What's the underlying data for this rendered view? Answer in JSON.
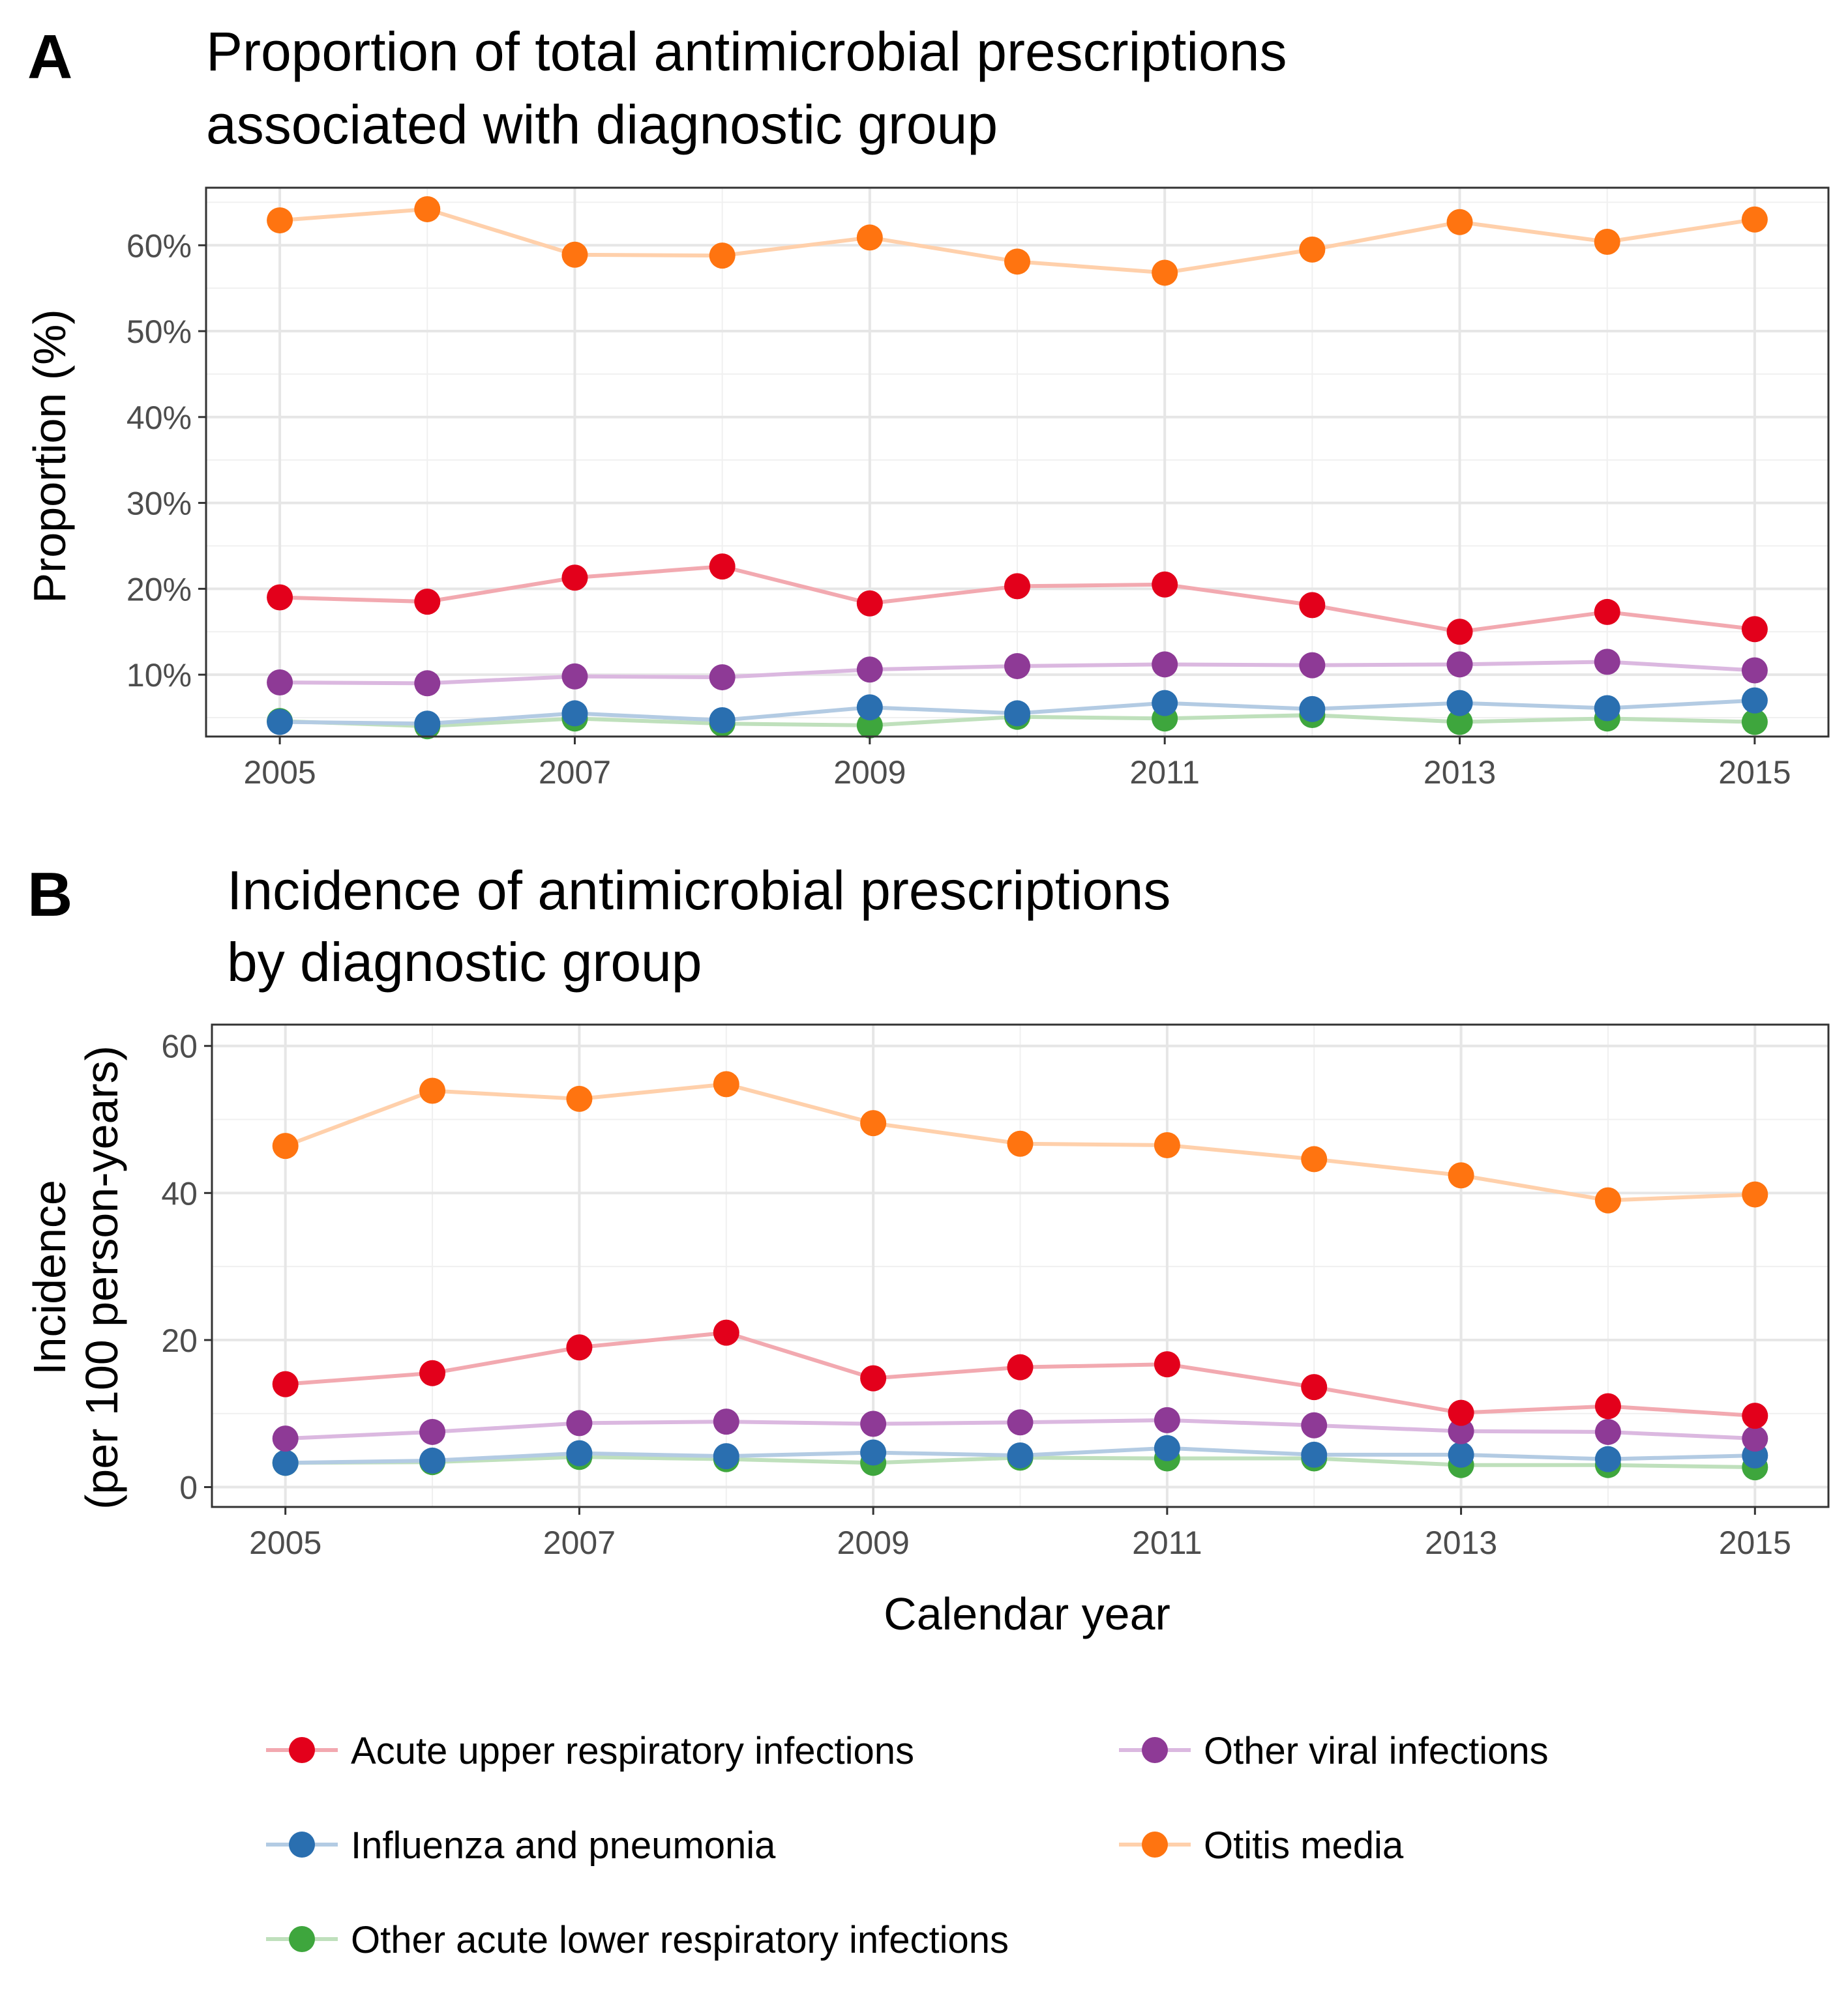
{
  "chart_data": [
    {
      "panel_label": "A",
      "type": "line",
      "title": "Proportion of total antimicrobial prescriptions associated with diagnostic group",
      "title_lines": [
        "Proportion of total antimicrobial prescriptions",
        "associated with diagnostic group"
      ],
      "xlabel": "",
      "ylabel": "Proportion (%)",
      "ylabel_lines": [
        "Proportion (%)"
      ],
      "x": [
        2005,
        2006,
        2007,
        2008,
        2009,
        2010,
        2011,
        2012,
        2013,
        2014,
        2015
      ],
      "xticks": [
        2005,
        2007,
        2009,
        2011,
        2013,
        2015
      ],
      "yticks": [
        10,
        20,
        30,
        40,
        50,
        60
      ],
      "ytick_suffix": "%",
      "xlim": [
        2004.5,
        2015.5
      ],
      "ylim": [
        2.8,
        66.7
      ],
      "grid": true,
      "series": [
        {
          "name": "Acute upper respiratory infections",
          "values": [
            19.0,
            18.5,
            21.3,
            22.6,
            18.3,
            20.3,
            20.5,
            18.1,
            15.0,
            17.3,
            15.3
          ]
        },
        {
          "name": "Other viral infections",
          "values": [
            9.1,
            9.0,
            9.8,
            9.7,
            10.6,
            11.0,
            11.2,
            11.1,
            11.2,
            11.5,
            10.5
          ]
        },
        {
          "name": "Influenza and pneumonia",
          "values": [
            4.5,
            4.3,
            5.5,
            4.7,
            6.2,
            5.5,
            6.7,
            6.0,
            6.7,
            6.1,
            7.0
          ]
        },
        {
          "name": "Otitis media",
          "values": [
            62.9,
            64.2,
            58.9,
            58.8,
            60.9,
            58.1,
            56.8,
            59.5,
            62.7,
            60.4,
            63.0
          ]
        },
        {
          "name": "Other acute lower respiratory infections",
          "values": [
            4.6,
            4.0,
            4.9,
            4.3,
            4.1,
            5.1,
            4.9,
            5.3,
            4.5,
            4.9,
            4.5
          ]
        }
      ]
    },
    {
      "panel_label": "B",
      "type": "line",
      "title": "Incidence of antimicrobial prescriptions by diagnostic group",
      "title_lines": [
        "Incidence of antimicrobial prescriptions",
        "by diagnostic group"
      ],
      "xlabel": "Calendar year",
      "ylabel": "Incidence (per 100 person-years)",
      "ylabel_lines": [
        "Incidence",
        "(per 100 person-years)"
      ],
      "x": [
        2005,
        2006,
        2007,
        2008,
        2009,
        2010,
        2011,
        2012,
        2013,
        2014,
        2015
      ],
      "xticks": [
        2005,
        2007,
        2009,
        2011,
        2013,
        2015
      ],
      "yticks": [
        0,
        20,
        40,
        60
      ],
      "ytick_suffix": "",
      "xlim": [
        2004.5,
        2015.5
      ],
      "ylim": [
        -2.7,
        62.9
      ],
      "grid": true,
      "series": [
        {
          "name": "Acute upper respiratory infections",
          "values": [
            14.0,
            15.5,
            19.0,
            21.0,
            14.8,
            16.3,
            16.7,
            13.6,
            10.1,
            11.0,
            9.7
          ]
        },
        {
          "name": "Other viral infections",
          "values": [
            6.6,
            7.5,
            8.7,
            8.9,
            8.6,
            8.8,
            9.1,
            8.4,
            7.6,
            7.5,
            6.6
          ]
        },
        {
          "name": "Influenza and pneumonia",
          "values": [
            3.3,
            3.6,
            4.6,
            4.2,
            4.7,
            4.3,
            5.3,
            4.4,
            4.4,
            3.8,
            4.3
          ]
        },
        {
          "name": "Otitis media",
          "values": [
            46.4,
            53.9,
            52.8,
            54.8,
            49.5,
            46.7,
            46.5,
            44.6,
            42.4,
            39.0,
            39.8
          ]
        },
        {
          "name": "Other acute lower respiratory infections",
          "values": [
            3.3,
            3.4,
            4.1,
            3.8,
            3.3,
            4.0,
            3.9,
            3.9,
            3.0,
            3.0,
            2.7
          ]
        }
      ]
    }
  ],
  "legend": {
    "position": "bottom",
    "items": [
      {
        "label": "Acute upper respiratory infections",
        "color": "#e41a1c"
      },
      {
        "label": "Other viral infections",
        "color": "#984ea3"
      },
      {
        "label": "Influenza and pneumonia",
        "color": "#377eb8"
      },
      {
        "label": "Otitis media",
        "color": "#ff7f00"
      },
      {
        "label": "Other acute lower respiratory infections",
        "color": "#4daf4a"
      }
    ]
  },
  "colors": {
    "Acute upper respiratory infections": {
      "point": "#e3001b",
      "line": "#f2a9b0"
    },
    "Other viral infections": {
      "point": "#8e3a96",
      "line": "#dbb8e0"
    },
    "Influenza and pneumonia": {
      "point": "#2a6fb0",
      "line": "#b3cbe3"
    },
    "Otitis media": {
      "point": "#ff7410",
      "line": "#ffd0ab"
    },
    "Other acute lower respiratory infections": {
      "point": "#3ea63d",
      "line": "#bfe0bc"
    }
  }
}
